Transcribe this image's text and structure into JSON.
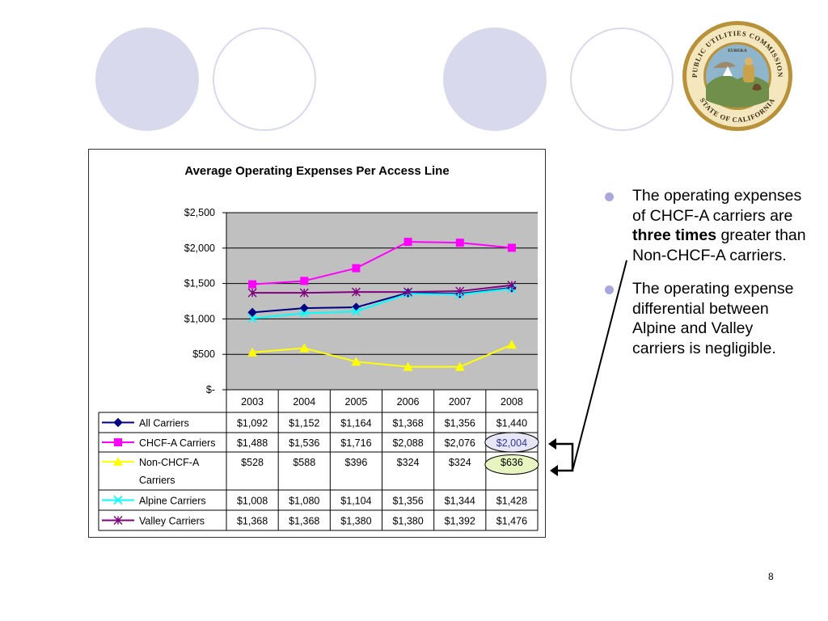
{
  "slide": {
    "page_number": "8",
    "bullets": [
      {
        "pre": "The operating expenses of CHCF-A carriers are ",
        "bold": "three times",
        "post": " greater than Non-CHCF-A carriers."
      },
      {
        "pre": "The operating expense  differential between Alpine and Valley carriers is negligible.",
        "bold": "",
        "post": ""
      }
    ],
    "seal": {
      "ring_top": "PUBLIC UTILITIES COMMISSION",
      "ring_bottom": "STATE OF CALIFORNIA",
      "motto": "EUREKA"
    },
    "colors": {
      "deco": "#d9d9ee",
      "bullet": "#a8a8df",
      "highlight_pink": "#e6e6f6",
      "highlight_yellow": "#e8f5c0"
    }
  },
  "chart_data": {
    "type": "line",
    "title": "Average Operating Expenses Per Access Line",
    "categories": [
      "2003",
      "2004",
      "2005",
      "2006",
      "2007",
      "2008"
    ],
    "ylim": [
      0,
      2500
    ],
    "yticks": [
      0,
      500,
      1000,
      1500,
      2000,
      2500
    ],
    "ytick_labels": [
      "$-",
      "$500",
      "$1,000",
      "$1,500",
      "$2,000",
      "$2,500"
    ],
    "grid": true,
    "plot_background": "#c0c0c0",
    "legend": "data table below chart",
    "series": [
      {
        "name": "All Carriers",
        "color": "#000080",
        "marker": "diamond",
        "values": [
          1092,
          1152,
          1164,
          1368,
          1356,
          1440
        ],
        "labels": [
          "$1,092",
          "$1,152",
          "$1,164",
          "$1,368",
          "$1,356",
          "$1,440"
        ]
      },
      {
        "name": "CHCF-A Carriers",
        "color": "#ff00ff",
        "marker": "square",
        "values": [
          1488,
          1536,
          1716,
          2088,
          2076,
          2004
        ],
        "labels": [
          "$1,488",
          "$1,536",
          "$1,716",
          "$2,088",
          "$2,076",
          "$2,004"
        ]
      },
      {
        "name": "Non-CHCF-A Carriers",
        "color": "#ffff00",
        "marker": "triangle",
        "values": [
          528,
          588,
          396,
          324,
          324,
          636
        ],
        "labels": [
          "$528",
          "$588",
          "$396",
          "$324",
          "$324",
          "$636"
        ]
      },
      {
        "name": "Alpine Carriers",
        "color": "#00ffff",
        "marker": "x",
        "values": [
          1008,
          1080,
          1104,
          1356,
          1344,
          1428
        ],
        "labels": [
          "$1,008",
          "$1,080",
          "$1,104",
          "$1,356",
          "$1,344",
          "$1,428"
        ]
      },
      {
        "name": "Valley Carriers",
        "color": "#800080",
        "marker": "star",
        "values": [
          1368,
          1368,
          1380,
          1380,
          1392,
          1476
        ],
        "labels": [
          "$1,368",
          "$1,368",
          "$1,380",
          "$1,380",
          "$1,392",
          "$1,476"
        ]
      }
    ],
    "highlighted_cells": [
      {
        "series": 1,
        "category": 5
      },
      {
        "series": 2,
        "category": 5
      }
    ]
  }
}
